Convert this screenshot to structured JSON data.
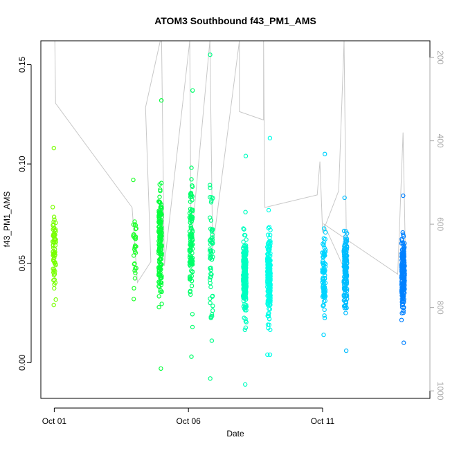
{
  "chart_data": {
    "type": "scatter",
    "title": "ATOM3 Southbound f43_PM1_AMS",
    "xlabel": "Date",
    "ylabel": "f43_PM1_AMS",
    "x_ticks": [
      {
        "label": "Oct 01",
        "day": 1
      },
      {
        "label": "Oct 06",
        "day": 6
      },
      {
        "label": "Oct 11",
        "day": 11
      }
    ],
    "y_ticks": [
      "0.00",
      "0.05",
      "0.10",
      "0.15"
    ],
    "ylim": [
      -0.018,
      0.162
    ],
    "xlim_days": [
      0.5,
      15.0
    ],
    "secondary_axis": {
      "side": "right",
      "reversed": true,
      "ticks": [
        "200",
        "400",
        "600",
        "800",
        "1000"
      ],
      "ylim": [
        160,
        1018
      ],
      "color": "#a8a8a8"
    },
    "color_scale": [
      "#80ff00",
      "#00ff40",
      "#00ffff",
      "#0080ff"
    ],
    "clusters": [
      {
        "day": 1.0,
        "center": 0.058,
        "spread": 0.01,
        "n": 70,
        "min": 0.029,
        "max": 0.108
      },
      {
        "day": 4.0,
        "center": 0.056,
        "spread": 0.009,
        "n": 30,
        "min": 0.032,
        "max": 0.092
      },
      {
        "day": 4.95,
        "center": 0.06,
        "spread": 0.014,
        "n": 170,
        "min": -0.003,
        "max": 0.132
      },
      {
        "day": 6.1,
        "center": 0.062,
        "spread": 0.013,
        "n": 120,
        "min": 0.003,
        "max": 0.137
      },
      {
        "day": 6.85,
        "center": 0.052,
        "spread": 0.016,
        "n": 60,
        "min": -0.008,
        "max": 0.155
      },
      {
        "day": 8.1,
        "center": 0.043,
        "spread": 0.01,
        "n": 240,
        "min": -0.011,
        "max": 0.104
      },
      {
        "day": 9.0,
        "center": 0.042,
        "spread": 0.011,
        "n": 220,
        "min": 0.004,
        "max": 0.113
      },
      {
        "day": 11.05,
        "center": 0.046,
        "spread": 0.009,
        "n": 90,
        "min": 0.014,
        "max": 0.105
      },
      {
        "day": 11.85,
        "center": 0.045,
        "spread": 0.009,
        "n": 160,
        "min": 0.006,
        "max": 0.083
      },
      {
        "day": 14.0,
        "center": 0.045,
        "spread": 0.009,
        "n": 180,
        "min": 0.01,
        "max": 0.084
      }
    ],
    "track": [
      {
        "day": 1.02,
        "alt": 160
      },
      {
        "day": 1.05,
        "alt": 310
      },
      {
        "day": 3.9,
        "alt": 560
      },
      {
        "day": 4.1,
        "alt": 740
      },
      {
        "day": 4.6,
        "alt": 690
      },
      {
        "day": 4.4,
        "alt": 320
      },
      {
        "day": 4.95,
        "alt": 160
      },
      {
        "day": 5.0,
        "alt": 160
      },
      {
        "day": 5.1,
        "alt": 700
      },
      {
        "day": 6.05,
        "alt": 160
      },
      {
        "day": 6.1,
        "alt": 650
      },
      {
        "day": 6.8,
        "alt": 160
      },
      {
        "day": 6.9,
        "alt": 660
      },
      {
        "day": 7.9,
        "alt": 160
      },
      {
        "day": 7.9,
        "alt": 330
      },
      {
        "day": 8.8,
        "alt": 350
      },
      {
        "day": 8.8,
        "alt": 160
      },
      {
        "day": 8.85,
        "alt": 560
      },
      {
        "day": 10.8,
        "alt": 530
      },
      {
        "day": 10.9,
        "alt": 450
      },
      {
        "day": 11.0,
        "alt": 620
      },
      {
        "day": 11.6,
        "alt": 520
      },
      {
        "day": 11.8,
        "alt": 160
      },
      {
        "day": 11.9,
        "alt": 720
      },
      {
        "day": 11.05,
        "alt": 600
      },
      {
        "day": 13.8,
        "alt": 720
      },
      {
        "day": 14.0,
        "alt": 380
      },
      {
        "day": 14.1,
        "alt": 720
      }
    ],
    "grid": false,
    "legend": "none"
  }
}
